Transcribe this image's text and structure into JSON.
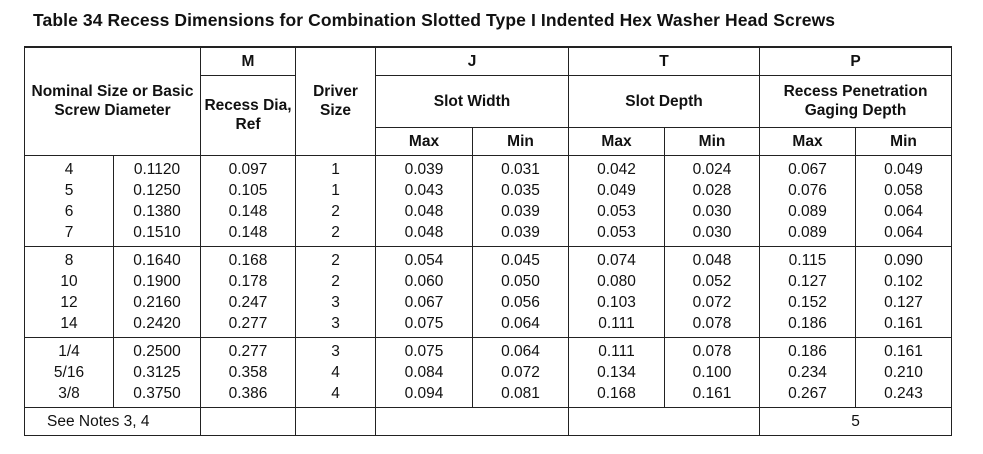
{
  "title": "Table 34 Recess Dimensions for Combination Slotted Type I Indented Hex Washer Head Screws",
  "headers": {
    "nominal": "Nominal Size or Basic Screw Diameter",
    "m_letter": "M",
    "m_label": "Recess Dia, Ref",
    "driver": "Driver Size",
    "j_letter": "J",
    "j_label": "Slot Width",
    "t_letter": "T",
    "t_label": "Slot Depth",
    "p_letter": "P",
    "p_label": "Recess Penetration Gaging Depth",
    "max": "Max",
    "min": "Min"
  },
  "groups": [
    [
      [
        "4",
        "0.1120",
        "0.097",
        "1",
        "0.039",
        "0.031",
        "0.042",
        "0.024",
        "0.067",
        "0.049"
      ],
      [
        "5",
        "0.1250",
        "0.105",
        "1",
        "0.043",
        "0.035",
        "0.049",
        "0.028",
        "0.076",
        "0.058"
      ],
      [
        "6",
        "0.1380",
        "0.148",
        "2",
        "0.048",
        "0.039",
        "0.053",
        "0.030",
        "0.089",
        "0.064"
      ],
      [
        "7",
        "0.1510",
        "0.148",
        "2",
        "0.048",
        "0.039",
        "0.053",
        "0.030",
        "0.089",
        "0.064"
      ]
    ],
    [
      [
        "8",
        "0.1640",
        "0.168",
        "2",
        "0.054",
        "0.045",
        "0.074",
        "0.048",
        "0.115",
        "0.090"
      ],
      [
        "10",
        "0.1900",
        "0.178",
        "2",
        "0.060",
        "0.050",
        "0.080",
        "0.052",
        "0.127",
        "0.102"
      ],
      [
        "12",
        "0.2160",
        "0.247",
        "3",
        "0.067",
        "0.056",
        "0.103",
        "0.072",
        "0.152",
        "0.127"
      ],
      [
        "14",
        "0.2420",
        "0.277",
        "3",
        "0.075",
        "0.064",
        "0.111",
        "0.078",
        "0.186",
        "0.161"
      ]
    ],
    [
      [
        "1/4",
        "0.2500",
        "0.277",
        "3",
        "0.075",
        "0.064",
        "0.111",
        "0.078",
        "0.186",
        "0.161"
      ],
      [
        "5/16",
        "0.3125",
        "0.358",
        "4",
        "0.084",
        "0.072",
        "0.134",
        "0.100",
        "0.234",
        "0.210"
      ],
      [
        "3/8",
        "0.3750",
        "0.386",
        "4",
        "0.094",
        "0.081",
        "0.168",
        "0.161",
        "0.267",
        "0.243"
      ]
    ]
  ],
  "footer": {
    "notes": "See Notes 3, 4",
    "p_note": "5"
  }
}
